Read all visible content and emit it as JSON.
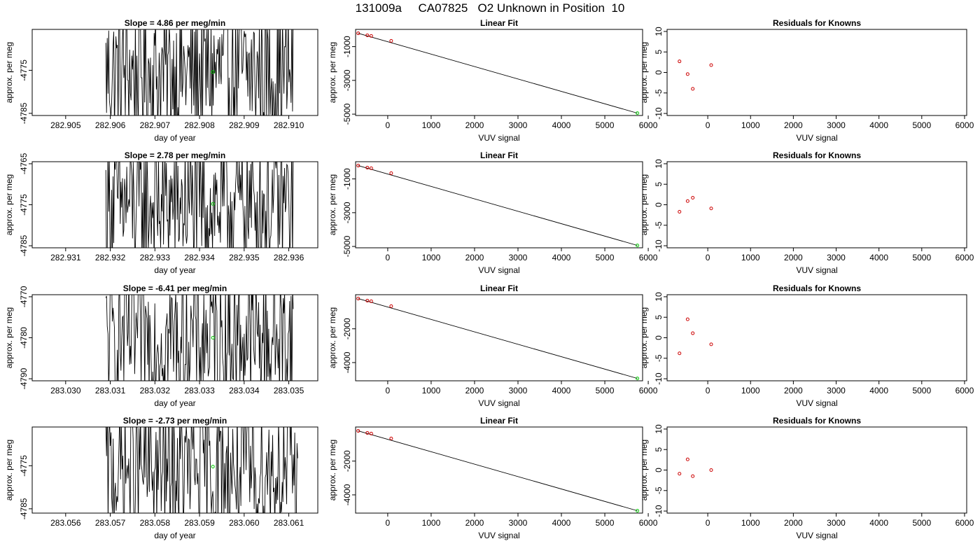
{
  "figure": {
    "title": "131009a     CA07825   O2 Unknown in Position  10"
  },
  "labels": {
    "linear_fit_title": "Linear Fit",
    "residuals_title": "Residuals for Knowns",
    "day_xlabel": "day of year",
    "vuv_xlabel": "VUV signal",
    "ylabel": "approx. per meg"
  },
  "colors": {
    "trace": "#000000",
    "unknown_point": "#00cc00",
    "known_point": "#cc0000",
    "axis": "#000000"
  },
  "chart_data": [
    {
      "row": 1,
      "slope_title": "Slope =  4.86  per meg/min",
      "timeseries": {
        "type": "line",
        "xlabel": "day of year",
        "ylabel": "approx. per meg",
        "xlim": [
          282.90425,
          282.91065
        ],
        "ylim": [
          -4785.5,
          -4765.5
        ],
        "xticks": [
          "282.905",
          "282.906",
          "282.907",
          "282.908",
          "282.909",
          "282.910"
        ],
        "yticks": [
          "-4775",
          "-4785"
        ],
        "trace_start": 282.9059,
        "trace_end": 282.9101,
        "trace_min": -4785.5,
        "trace_max": -4765.5,
        "unknown_x": 282.9083,
        "unknown_y": -4775.4
      },
      "linear_fit": {
        "type": "scatter",
        "xlabel": "VUV signal",
        "ylabel": "approx. per meg",
        "xlim": [
          -740,
          5870
        ],
        "ylim": [
          -5080,
          20
        ],
        "xticks": [
          0,
          1000,
          2000,
          3000,
          4000,
          5000,
          6000
        ],
        "yticks": [
          -1000,
          -3000,
          -5000
        ],
        "known_x": [
          -680,
          -470,
          -380,
          80
        ],
        "known_y": [
          -210,
          -330,
          -370,
          -660
        ],
        "unknown_x": [
          5750
        ],
        "unknown_y": [
          -4940
        ]
      },
      "residuals": {
        "type": "scatter",
        "xlabel": "VUV signal",
        "ylabel": "approx. per meg",
        "xlim": [
          -950,
          6050
        ],
        "ylim": [
          -10.5,
          10.5
        ],
        "xticks": [
          0,
          1000,
          2000,
          3000,
          4000,
          5000,
          6000
        ],
        "yticks": [
          -10,
          -5,
          0,
          5,
          10
        ],
        "x": [
          -660,
          -470,
          -350,
          80
        ],
        "y": [
          2.7,
          -0.4,
          -4.0,
          1.8
        ]
      }
    },
    {
      "row": 2,
      "slope_title": "Slope =  2.78  per meg/min",
      "timeseries": {
        "type": "line",
        "xlabel": "day of year",
        "ylabel": "approx. per meg",
        "xlim": [
          282.93025,
          282.93665
        ],
        "ylim": [
          -4785.5,
          -4764.5
        ],
        "xticks": [
          "282.931",
          "282.932",
          "282.933",
          "282.934",
          "282.935",
          "282.936"
        ],
        "yticks": [
          "-4765",
          "-4775",
          "-4785"
        ],
        "trace_start": 282.9319,
        "trace_end": 282.9361,
        "trace_min": -4785.5,
        "trace_max": -4764.5,
        "unknown_x": 282.9343,
        "unknown_y": -4774.8
      },
      "linear_fit": {
        "type": "scatter",
        "xlabel": "VUV signal",
        "ylabel": "approx. per meg",
        "xlim": [
          -740,
          5870
        ],
        "ylim": [
          -5080,
          20
        ],
        "xticks": [
          0,
          1000,
          2000,
          3000,
          4000,
          5000,
          6000
        ],
        "yticks": [
          -1000,
          -3000,
          -5000
        ],
        "known_x": [
          -680,
          -470,
          -380,
          80
        ],
        "known_y": [
          -210,
          -330,
          -370,
          -660
        ],
        "unknown_x": [
          5750
        ],
        "unknown_y": [
          -4940
        ]
      },
      "residuals": {
        "type": "scatter",
        "xlabel": "VUV signal",
        "ylabel": "approx. per meg",
        "xlim": [
          -950,
          6050
        ],
        "ylim": [
          -10.5,
          10.5
        ],
        "xticks": [
          0,
          1000,
          2000,
          3000,
          4000,
          5000,
          6000
        ],
        "yticks": [
          -10,
          -5,
          0,
          5,
          10
        ],
        "x": [
          -660,
          -470,
          -350,
          80
        ],
        "y": [
          -1.7,
          0.9,
          1.7,
          -0.9
        ]
      }
    },
    {
      "row": 3,
      "slope_title": "Slope =  -6.41  per meg/min",
      "timeseries": {
        "type": "line",
        "xlabel": "day of year",
        "ylabel": "approx. per meg",
        "xlim": [
          283.02925,
          283.03565
        ],
        "ylim": [
          -4790.5,
          -4769.5
        ],
        "xticks": [
          "283.030",
          "283.031",
          "283.032",
          "283.033",
          "283.034",
          "283.035"
        ],
        "yticks": [
          "-4770",
          "-4780",
          "-4790"
        ],
        "trace_start": 283.0309,
        "trace_end": 283.0351,
        "trace_min": -4790.5,
        "trace_max": -4769.5,
        "unknown_x": 283.0333,
        "unknown_y": -4780.0
      },
      "linear_fit": {
        "type": "scatter",
        "xlabel": "VUV signal",
        "ylabel": "approx. per meg",
        "xlim": [
          -740,
          5870
        ],
        "ylim": [
          -5080,
          20
        ],
        "xticks": [
          0,
          1000,
          2000,
          3000,
          4000,
          5000,
          6000
        ],
        "yticks": [
          -2000,
          -4000
        ],
        "known_x": [
          -680,
          -470,
          -380,
          80
        ],
        "known_y": [
          -210,
          -330,
          -370,
          -660
        ],
        "unknown_x": [
          5750
        ],
        "unknown_y": [
          -4940
        ]
      },
      "residuals": {
        "type": "scatter",
        "xlabel": "VUV signal",
        "ylabel": "approx. per meg",
        "xlim": [
          -950,
          6050
        ],
        "ylim": [
          -10.5,
          10.5
        ],
        "xticks": [
          0,
          1000,
          2000,
          3000,
          4000,
          5000,
          6000
        ],
        "yticks": [
          -10,
          -5,
          0,
          5,
          10
        ],
        "x": [
          -660,
          -470,
          -350,
          80
        ],
        "y": [
          -3.8,
          4.5,
          1.1,
          -1.6
        ]
      }
    },
    {
      "row": 4,
      "slope_title": "Slope =  -2.73  per meg/min",
      "timeseries": {
        "type": "line",
        "xlabel": "day of year",
        "ylabel": "approx. per meg",
        "xlim": [
          283.05525,
          283.06165
        ],
        "ylim": [
          -4786.0,
          -4766.0
        ],
        "xticks": [
          "283.056",
          "283.057",
          "283.058",
          "283.059",
          "283.060",
          "283.061"
        ],
        "yticks": [
          "-4775",
          "-4785"
        ],
        "trace_start": 283.0569,
        "trace_end": 283.0612,
        "trace_min": -4786.0,
        "trace_max": -4766.0,
        "unknown_x": 283.0593,
        "unknown_y": -4775.2
      },
      "linear_fit": {
        "type": "scatter",
        "xlabel": "VUV signal",
        "ylabel": "approx. per meg",
        "xlim": [
          -740,
          5870
        ],
        "ylim": [
          -5080,
          20
        ],
        "xticks": [
          0,
          1000,
          2000,
          3000,
          4000,
          5000,
          6000
        ],
        "yticks": [
          -2000,
          -4000
        ],
        "known_x": [
          -680,
          -470,
          -380,
          80
        ],
        "known_y": [
          -210,
          -330,
          -370,
          -660
        ],
        "unknown_x": [
          5750
        ],
        "unknown_y": [
          -4940
        ]
      },
      "residuals": {
        "type": "scatter",
        "xlabel": "VUV signal",
        "ylabel": "approx. per meg",
        "xlim": [
          -950,
          6050
        ],
        "ylim": [
          -10.5,
          10.5
        ],
        "xticks": [
          0,
          1000,
          2000,
          3000,
          4000,
          5000,
          6000
        ],
        "yticks": [
          -10,
          -5,
          0,
          5,
          10
        ],
        "x": [
          -660,
          -470,
          -350,
          80
        ],
        "y": [
          -0.9,
          2.6,
          -1.5,
          0.0
        ]
      }
    }
  ]
}
